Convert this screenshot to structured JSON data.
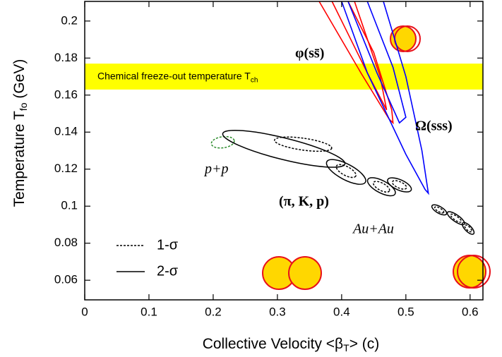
{
  "chart_data": {
    "type": "contour",
    "xlabel": [
      "Collective Velocity <β",
      "T",
      "> (c)"
    ],
    "ylabel": [
      "Temperature T",
      "fo",
      " (GeV)"
    ],
    "xlim": [
      0,
      0.62
    ],
    "ylim": [
      0.0494,
      0.2106
    ],
    "xticks": [
      0,
      0.1,
      0.2,
      0.3,
      0.4,
      0.5,
      0.6
    ],
    "yticks": [
      0.06,
      0.08,
      0.1,
      0.12,
      0.14,
      0.16,
      0.18,
      0.2
    ],
    "band": {
      "label": [
        "Chemical freeze-out temperature T",
        "ch"
      ],
      "range": [
        0.163,
        0.177
      ],
      "color": "#ffff00"
    },
    "legend": [
      {
        "label": "1-σ",
        "dash": true
      },
      {
        "label": "2-σ",
        "dash": false
      }
    ],
    "annotations": {
      "phi": "φ(ss̄)",
      "omega": "Ω(sss)",
      "pikp": "(π, K, p)",
      "auau": "Au+Au",
      "pp": "p+p"
    },
    "ellipses": [
      {
        "color": "#2a8a2a",
        "dash": true,
        "cx": 0.215,
        "cy": 0.1345,
        "rx": 0.018,
        "ry": 0.003,
        "tilt": -8
      },
      {
        "color": "#000000",
        "dash": false,
        "cx": 0.31,
        "cy": 0.131,
        "rx": 0.098,
        "ry": 0.0058,
        "tilt": 14
      },
      {
        "color": "#000000",
        "dash": true,
        "cx": 0.34,
        "cy": 0.1335,
        "rx": 0.045,
        "ry": 0.0032,
        "tilt": 8
      },
      {
        "color": "#000000",
        "dash": false,
        "cx": 0.407,
        "cy": 0.1185,
        "rx": 0.034,
        "ry": 0.0042,
        "tilt": 28
      },
      {
        "color": "#000000",
        "dash": true,
        "cx": 0.407,
        "cy": 0.119,
        "rx": 0.017,
        "ry": 0.0024,
        "tilt": 28
      },
      {
        "color": "#000000",
        "dash": false,
        "cx": 0.462,
        "cy": 0.1105,
        "rx": 0.024,
        "ry": 0.0033,
        "tilt": 28
      },
      {
        "color": "#000000",
        "dash": true,
        "cx": 0.462,
        "cy": 0.1105,
        "rx": 0.014,
        "ry": 0.002,
        "tilt": 28
      },
      {
        "color": "#000000",
        "dash": false,
        "cx": 0.49,
        "cy": 0.1115,
        "rx": 0.02,
        "ry": 0.0028,
        "tilt": 24
      },
      {
        "color": "#000000",
        "dash": true,
        "cx": 0.49,
        "cy": 0.1115,
        "rx": 0.012,
        "ry": 0.0017,
        "tilt": 24
      },
      {
        "color": "#000000",
        "dash": false,
        "cx": 0.552,
        "cy": 0.098,
        "rx": 0.013,
        "ry": 0.0018,
        "tilt": 30
      },
      {
        "color": "#000000",
        "dash": true,
        "cx": 0.552,
        "cy": 0.098,
        "rx": 0.008,
        "ry": 0.001,
        "tilt": 30
      },
      {
        "color": "#000000",
        "dash": false,
        "cx": 0.578,
        "cy": 0.0935,
        "rx": 0.016,
        "ry": 0.0018,
        "tilt": 35
      },
      {
        "color": "#000000",
        "dash": true,
        "cx": 0.578,
        "cy": 0.0935,
        "rx": 0.01,
        "ry": 0.0011,
        "tilt": 35
      },
      {
        "color": "#000000",
        "dash": false,
        "cx": 0.597,
        "cy": 0.088,
        "rx": 0.012,
        "ry": 0.0017,
        "tilt": 45
      },
      {
        "color": "#000000",
        "dash": true,
        "cx": 0.597,
        "cy": 0.088,
        "rx": 0.007,
        "ry": 0.001,
        "tilt": 45
      }
    ],
    "regions": [
      {
        "color": "#ff0000",
        "x": [
          0.365,
          0.43,
          0.474,
          0.48,
          0.478,
          0.45,
          0.41
        ],
        "y": [
          0.2106,
          0.172,
          0.147,
          0.145,
          0.152,
          0.183,
          0.2106
        ]
      },
      {
        "color": "#ff0000",
        "x": [
          0.385,
          0.44,
          0.47,
          0.46,
          0.42
        ],
        "y": [
          0.2106,
          0.172,
          0.152,
          0.17,
          0.2106
        ]
      },
      {
        "color": "#0000ff",
        "x": [
          0.4,
          0.44,
          0.5,
          0.53,
          0.535,
          0.525,
          0.5,
          0.465
        ],
        "y": [
          0.2106,
          0.172,
          0.128,
          0.109,
          0.107,
          0.13,
          0.17,
          0.2106
        ]
      },
      {
        "color": "#0000ff",
        "x": [
          0.41,
          0.455,
          0.49,
          0.5,
          0.48,
          0.44
        ],
        "y": [
          0.2106,
          0.172,
          0.145,
          0.148,
          0.175,
          0.2106
        ]
      }
    ]
  }
}
